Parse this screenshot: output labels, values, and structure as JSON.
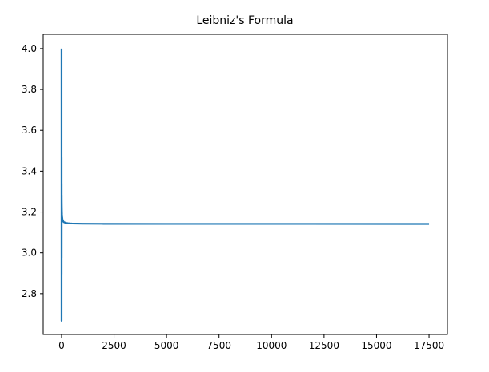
{
  "chart_data": {
    "type": "line",
    "title": "Leibniz's Formula",
    "xlabel": "",
    "ylabel": "",
    "xlim": [
      -875,
      18375
    ],
    "ylim": [
      2.6,
      4.07
    ],
    "xticks": [
      0,
      2500,
      5000,
      7500,
      10000,
      12500,
      15000,
      17500
    ],
    "xtick_labels": [
      "0",
      "2500",
      "5000",
      "7500",
      "10000",
      "12500",
      "15000",
      "17500"
    ],
    "yticks": [
      2.8,
      3.0,
      3.2,
      3.4,
      3.6,
      3.8,
      4.0
    ],
    "ytick_labels": [
      "2.8",
      "3.0",
      "3.2",
      "3.4",
      "3.6",
      "3.8",
      "4.0"
    ],
    "grid": false,
    "legend": "none",
    "line_color": "#1f77b4",
    "series": [
      {
        "x": [
          0,
          1,
          2,
          3,
          4,
          5,
          6,
          8,
          10,
          15,
          20,
          30,
          50,
          100,
          200,
          300,
          400,
          500,
          1000,
          2000,
          5000,
          10000,
          17500
        ],
        "y": [
          4.0,
          2.667,
          3.467,
          2.895,
          3.34,
          2.976,
          3.284,
          3.252,
          3.232,
          3.204,
          3.189,
          3.174,
          3.161,
          3.151,
          3.1466,
          3.1449,
          3.1441,
          3.1436,
          3.1426,
          3.1421,
          3.1418,
          3.1417,
          3.1416
        ]
      }
    ]
  }
}
